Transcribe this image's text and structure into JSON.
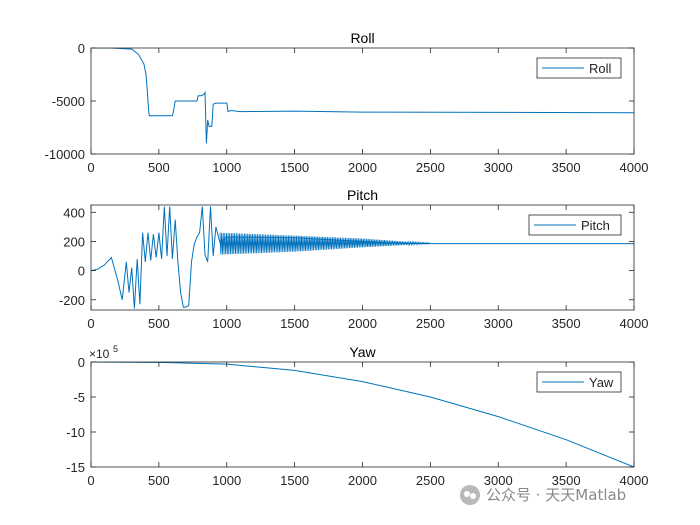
{
  "chart_data": [
    {
      "type": "line",
      "title": "Roll",
      "legend": "Roll",
      "legend_position": "top-right",
      "xlim": [
        0,
        4000
      ],
      "ylim": [
        -10000,
        0
      ],
      "xticks": [
        0,
        500,
        1000,
        1500,
        2000,
        2500,
        3000,
        3500,
        4000
      ],
      "xtick_labels": [
        "0",
        "500",
        "1000",
        "1500",
        "2000",
        "2500",
        "3000",
        "3500",
        "4000"
      ],
      "yticks": [
        -10000,
        -5000,
        0
      ],
      "ytick_labels": [
        "-10000",
        "-5000",
        "0"
      ],
      "color": "#0072BD",
      "series": [
        {
          "name": "Roll",
          "x": [
            0,
            150,
            300,
            350,
            390,
            405,
            415,
            425,
            430,
            600,
            610,
            620,
            640,
            780,
            790,
            810,
            830,
            840,
            850,
            860,
            870,
            880,
            890,
            900,
            920,
            1000,
            1010,
            1030,
            1100,
            1500,
            2000,
            4000
          ],
          "y": [
            0,
            0,
            -100,
            -600,
            -1500,
            -2500,
            -4000,
            -6000,
            -6400,
            -6400,
            -5800,
            -5000,
            -5000,
            -5000,
            -4500,
            -4500,
            -4400,
            -4200,
            -9000,
            -6800,
            -7400,
            -7400,
            -7400,
            -5300,
            -5200,
            -5200,
            -6000,
            -5900,
            -6000,
            -5950,
            -6050,
            -6100
          ]
        }
      ]
    },
    {
      "type": "line",
      "title": "Pitch",
      "legend": "Pitch",
      "legend_position": "top-right",
      "xlim": [
        0,
        4000
      ],
      "ylim": [
        -270,
        450
      ],
      "xticks": [
        0,
        500,
        1000,
        1500,
        2000,
        2500,
        3000,
        3500,
        4000
      ],
      "xtick_labels": [
        "0",
        "500",
        "1000",
        "1500",
        "2000",
        "2500",
        "3000",
        "3500",
        "4000"
      ],
      "yticks": [
        -200,
        0,
        200,
        400
      ],
      "ytick_labels": [
        "-200",
        "0",
        "200",
        "400"
      ],
      "color": "#0072BD",
      "series": [
        {
          "name": "Pitch",
          "x": [
            0,
            50,
            100,
            150,
            200,
            230,
            260,
            280,
            300,
            320,
            340,
            360,
            380,
            400,
            420,
            440,
            460,
            480,
            500,
            520,
            540,
            560,
            580,
            600,
            620,
            640,
            660,
            680,
            700,
            720,
            740,
            760,
            780,
            800,
            820,
            840,
            860,
            880,
            900,
            920,
            950,
            1000,
            1200,
            1500,
            1800,
            2000,
            2100,
            2200,
            2300,
            2400,
            2500,
            3000,
            4000
          ],
          "y": [
            0,
            10,
            40,
            90,
            -80,
            -200,
            60,
            -150,
            20,
            -260,
            80,
            -230,
            260,
            60,
            260,
            70,
            250,
            90,
            260,
            80,
            440,
            100,
            440,
            80,
            350,
            60,
            -150,
            -250,
            -250,
            -240,
            60,
            180,
            230,
            260,
            440,
            110,
            60,
            440,
            100,
            300,
            190,
            230,
            230,
            225,
            210,
            200,
            195,
            190,
            188,
            186,
            185,
            185,
            185
          ],
          "band_envelope": {
            "x": [
              950,
              1500,
              2000,
              2300,
              2500
            ],
            "y_high": [
              260,
              240,
              220,
              200,
              190
            ],
            "y_low": [
              110,
              130,
              160,
              175,
              185
            ]
          }
        }
      ]
    },
    {
      "type": "line",
      "title": "Yaw",
      "legend": "Yaw",
      "legend_position": "top-right",
      "exponent_label": "×10",
      "exponent_power": "5",
      "xlim": [
        0,
        4000
      ],
      "ylim": [
        -15,
        0
      ],
      "xticks": [
        0,
        500,
        1000,
        1500,
        2000,
        2500,
        3000,
        3500,
        4000
      ],
      "xtick_labels": [
        "0",
        "500",
        "1000",
        "1500",
        "2000",
        "2500",
        "3000",
        "3500",
        "4000"
      ],
      "yticks": [
        -15,
        -10,
        -5,
        0
      ],
      "ytick_labels": [
        "-15",
        "-10",
        "-5",
        "0"
      ],
      "color": "#0072BD",
      "series": [
        {
          "name": "Yaw",
          "x": [
            0,
            500,
            1000,
            1500,
            2000,
            2500,
            3000,
            3500,
            4000
          ],
          "y": [
            0,
            -0.05,
            -0.3,
            -1.2,
            -2.8,
            -5.0,
            -7.8,
            -11.1,
            -15.0
          ]
        }
      ]
    }
  ],
  "watermark": {
    "text": "公众号 · 天天Matlab",
    "icon": "wechat-icon"
  }
}
